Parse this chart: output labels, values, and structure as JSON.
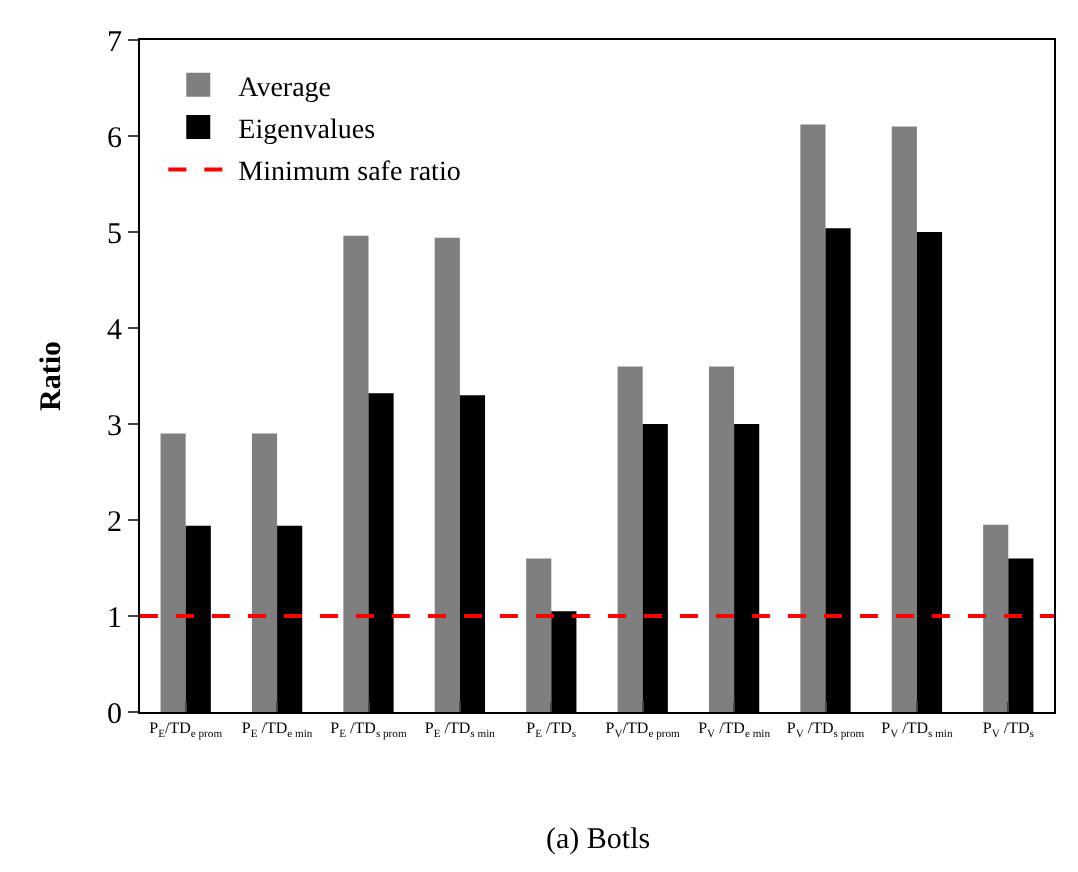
{
  "chart_data": {
    "type": "bar",
    "ylabel": "Ratio",
    "categories": [
      "P$_{E}$/TD$_{e prom}$",
      "P$_{E}$ /TD$_{e min}$",
      "P$_{E}$ /TD$_{s prom}$",
      "P$_{E}$ /TD$_{s min}$",
      "P$_{E}$ /TD$_{s}$",
      "P$_{V}$/TD$_{e prom}$",
      "P$_{V}$ /TD$_{e min}$",
      "P$_{V}$ /TD$_{s prom}$",
      "P$_{V}$ /TD$_{s min}$",
      "P$_{V}$ /TD$_{s}$"
    ],
    "series": [
      {
        "name": "Average",
        "color": "#7f7f7f",
        "values": [
          2.9,
          2.9,
          4.96,
          4.94,
          1.6,
          3.6,
          3.6,
          6.12,
          6.1,
          1.95
        ]
      },
      {
        "name": "Eigenvalues",
        "color": "#000000",
        "values": [
          1.94,
          1.94,
          3.32,
          3.3,
          1.05,
          3.0,
          3.0,
          5.04,
          5.0,
          1.6
        ]
      }
    ],
    "ref_lines": [
      {
        "axis": "y",
        "value": 1,
        "label": "Minimum safe ratio",
        "color": "#ff0000",
        "line_style": "dashed"
      }
    ],
    "ylim": [
      0,
      7
    ],
    "yticks": [
      0,
      1,
      2,
      3,
      4,
      5,
      6,
      7
    ],
    "grid": false,
    "legend": "top left",
    "annotations": [
      "(a) Botls"
    ]
  }
}
